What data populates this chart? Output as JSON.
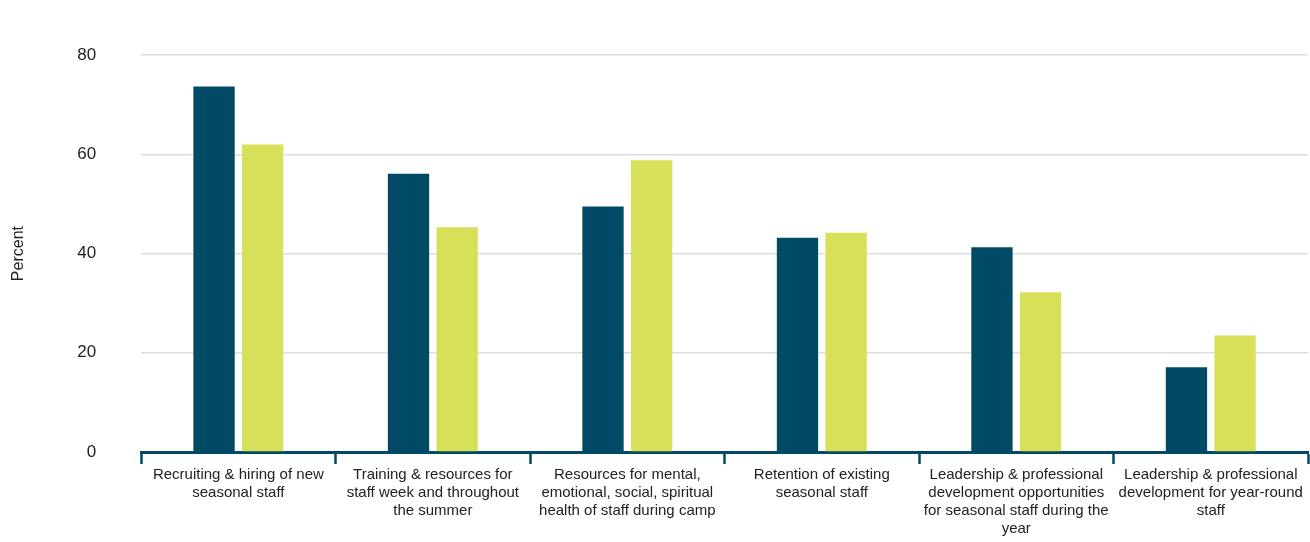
{
  "chart_data": {
    "type": "bar",
    "ylabel": "Percent",
    "categories": [
      "Recruiting & hiring of new seasonal staff",
      "Training & resources for staff week and throughout the summer",
      "Resources for mental, emotional, social, spiritual health of staff during camp",
      "Retention of existing seasonal staff",
      "Leadership & professional development opportunities for seasonal staff during the year",
      "Leadership & professional development for year-round staff"
    ],
    "series": [
      {
        "color": "#004a66",
        "values": [
          73.7,
          56.1,
          49.5,
          43.2,
          41.3,
          17.1
        ]
      },
      {
        "color": "#d8e05a",
        "values": [
          62.0,
          45.3,
          58.8,
          44.2,
          32.2,
          23.5
        ]
      }
    ],
    "ylim": [
      0,
      80
    ],
    "yticks": [
      0,
      20,
      40,
      60,
      80
    ],
    "grid": "y",
    "legend": false
  }
}
